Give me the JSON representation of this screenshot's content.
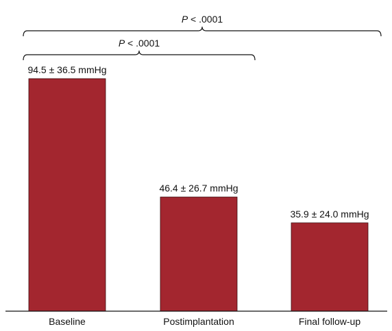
{
  "chart_data": {
    "type": "bar",
    "categories": [
      "Baseline",
      "Postimplantation",
      "Final follow-up"
    ],
    "values": [
      94.5,
      46.4,
      35.9
    ],
    "value_labels": [
      "94.5 ± 36.5 mmHg",
      "46.4 ± 26.7 mmHg",
      "35.9 ± 24.0 mmHg"
    ],
    "title": "",
    "xlabel": "",
    "ylabel": "",
    "ylim": [
      0,
      100
    ],
    "grid": false,
    "bar_color": "#A3262F",
    "comparisons": [
      {
        "from": 0,
        "to": 1,
        "p_symbol": "P",
        "p_rest": " < .0001"
      },
      {
        "from": 0,
        "to": 2,
        "p_symbol": "P",
        "p_rest": " < .0001"
      }
    ]
  }
}
